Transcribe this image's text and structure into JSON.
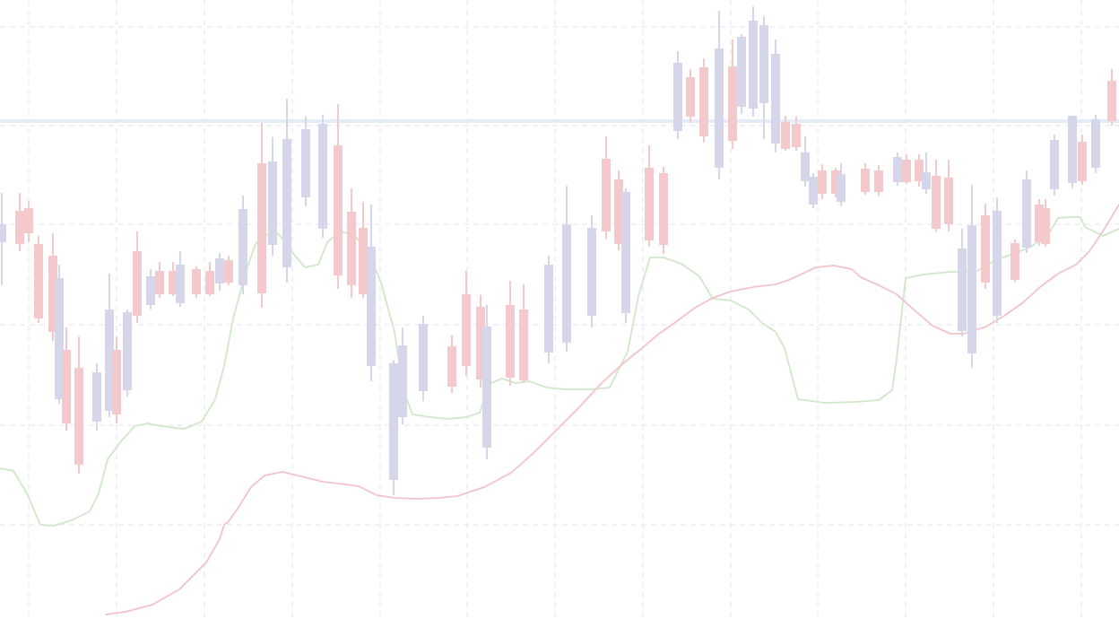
{
  "chart_data": {
    "type": "candlestick",
    "title": "",
    "xlabel": "",
    "ylabel": "",
    "grid": true,
    "legend": "none",
    "ylim": [
      0,
      690
    ],
    "colors": {
      "up": "#d6d6ea",
      "down": "#f3c9cc",
      "horizontal_line": "#e3ecf8",
      "green_line": "#cfe8c9",
      "red_line": "#f2c3c8",
      "grid": "#e6e6ea",
      "background": "#ffffff"
    },
    "horizontal_line": {
      "value": 555
    },
    "candles": [
      {
        "x": 2,
        "o": 440,
        "h": 475,
        "l": 372,
        "c": 420,
        "dir": "up"
      },
      {
        "x": 22,
        "o": 418,
        "h": 475,
        "l": 410,
        "c": 455,
        "dir": "down"
      },
      {
        "x": 32,
        "o": 458,
        "h": 465,
        "l": 420,
        "c": 430,
        "dir": "down"
      },
      {
        "x": 43,
        "o": 418,
        "h": 427,
        "l": 330,
        "c": 335,
        "dir": "down"
      },
      {
        "x": 59,
        "o": 405,
        "h": 430,
        "l": 310,
        "c": 320,
        "dir": "down"
      },
      {
        "x": 66,
        "o": 245,
        "h": 395,
        "l": 240,
        "c": 380,
        "dir": "up"
      },
      {
        "x": 74,
        "o": 300,
        "h": 325,
        "l": 210,
        "c": 218,
        "dir": "down"
      },
      {
        "x": 88,
        "o": 280,
        "h": 315,
        "l": 162,
        "c": 172,
        "dir": "down"
      },
      {
        "x": 108,
        "o": 220,
        "h": 285,
        "l": 210,
        "c": 275,
        "dir": "up"
      },
      {
        "x": 122,
        "o": 232,
        "h": 385,
        "l": 225,
        "c": 345,
        "dir": "up"
      },
      {
        "x": 130,
        "o": 300,
        "h": 315,
        "l": 218,
        "c": 228,
        "dir": "down"
      },
      {
        "x": 142,
        "o": 255,
        "h": 345,
        "l": 248,
        "c": 342,
        "dir": "up"
      },
      {
        "x": 153,
        "o": 410,
        "h": 432,
        "l": 330,
        "c": 338,
        "dir": "down"
      },
      {
        "x": 168,
        "o": 350,
        "h": 390,
        "l": 345,
        "c": 382,
        "dir": "up"
      },
      {
        "x": 178,
        "o": 388,
        "h": 398,
        "l": 358,
        "c": 362,
        "dir": "down"
      },
      {
        "x": 193,
        "o": 388,
        "h": 398,
        "l": 360,
        "c": 362,
        "dir": "down"
      },
      {
        "x": 201,
        "o": 352,
        "h": 410,
        "l": 348,
        "c": 395,
        "dir": "up"
      },
      {
        "x": 219,
        "o": 390,
        "h": 393,
        "l": 358,
        "c": 362,
        "dir": "down"
      },
      {
        "x": 234,
        "o": 388,
        "h": 398,
        "l": 360,
        "c": 362,
        "dir": "down"
      },
      {
        "x": 245,
        "o": 374,
        "h": 408,
        "l": 366,
        "c": 402,
        "dir": "up"
      },
      {
        "x": 255,
        "o": 400,
        "h": 405,
        "l": 372,
        "c": 375,
        "dir": "down"
      },
      {
        "x": 271,
        "o": 372,
        "h": 472,
        "l": 362,
        "c": 457,
        "dir": "up"
      },
      {
        "x": 292,
        "o": 508,
        "h": 553,
        "l": 347,
        "c": 363,
        "dir": "down"
      },
      {
        "x": 304,
        "o": 417,
        "h": 537,
        "l": 405,
        "c": 510,
        "dir": "up"
      },
      {
        "x": 320,
        "o": 392,
        "h": 580,
        "l": 375,
        "c": 535,
        "dir": "up"
      },
      {
        "x": 341,
        "o": 470,
        "h": 560,
        "l": 460,
        "c": 546,
        "dir": "up"
      },
      {
        "x": 360,
        "o": 435,
        "h": 562,
        "l": 425,
        "c": 552,
        "dir": "up"
      },
      {
        "x": 377,
        "o": 528,
        "h": 574,
        "l": 368,
        "c": 383,
        "dir": "down"
      },
      {
        "x": 392,
        "o": 454,
        "h": 480,
        "l": 358,
        "c": 372,
        "dir": "down"
      },
      {
        "x": 405,
        "o": 436,
        "h": 465,
        "l": 358,
        "c": 362,
        "dir": "down"
      },
      {
        "x": 414,
        "o": 282,
        "h": 462,
        "l": 265,
        "c": 415,
        "dir": "up"
      },
      {
        "x": 439,
        "o": 155,
        "h": 288,
        "l": 138,
        "c": 285,
        "dir": "up"
      },
      {
        "x": 449,
        "o": 225,
        "h": 325,
        "l": 217,
        "c": 305,
        "dir": "up"
      },
      {
        "x": 472,
        "o": 254,
        "h": 338,
        "l": 243,
        "c": 329,
        "dir": "up"
      },
      {
        "x": 504,
        "o": 304,
        "h": 316,
        "l": 252,
        "c": 259,
        "dir": "down"
      },
      {
        "x": 520,
        "o": 362,
        "h": 388,
        "l": 271,
        "c": 282,
        "dir": "down"
      },
      {
        "x": 536,
        "o": 348,
        "h": 361,
        "l": 258,
        "c": 267,
        "dir": "down"
      },
      {
        "x": 543,
        "o": 326,
        "h": 350,
        "l": 178,
        "c": 191,
        "dir": "up"
      },
      {
        "x": 569,
        "o": 350,
        "h": 377,
        "l": 260,
        "c": 269,
        "dir": "down"
      },
      {
        "x": 584,
        "o": 345,
        "h": 373,
        "l": 263,
        "c": 266,
        "dir": "down"
      },
      {
        "x": 612,
        "o": 297,
        "h": 405,
        "l": 285,
        "c": 395,
        "dir": "up"
      },
      {
        "x": 632,
        "o": 308,
        "h": 483,
        "l": 298,
        "c": 440,
        "dir": "up"
      },
      {
        "x": 660,
        "o": 338,
        "h": 450,
        "l": 325,
        "c": 436,
        "dir": "up"
      },
      {
        "x": 676,
        "o": 513,
        "h": 538,
        "l": 424,
        "c": 432,
        "dir": "down"
      },
      {
        "x": 690,
        "o": 490,
        "h": 500,
        "l": 411,
        "c": 418,
        "dir": "down"
      },
      {
        "x": 698,
        "o": 341,
        "h": 480,
        "l": 330,
        "c": 476,
        "dir": "up"
      },
      {
        "x": 724,
        "o": 503,
        "h": 528,
        "l": 415,
        "c": 422,
        "dir": "down"
      },
      {
        "x": 740,
        "o": 497,
        "h": 504,
        "l": 407,
        "c": 417,
        "dir": "down"
      },
      {
        "x": 756,
        "o": 544,
        "h": 633,
        "l": 535,
        "c": 620,
        "dir": "up"
      },
      {
        "x": 770,
        "o": 604,
        "h": 613,
        "l": 553,
        "c": 560,
        "dir": "down"
      },
      {
        "x": 785,
        "o": 615,
        "h": 625,
        "l": 531,
        "c": 538,
        "dir": "down"
      },
      {
        "x": 802,
        "o": 503,
        "h": 678,
        "l": 490,
        "c": 636,
        "dir": "up"
      },
      {
        "x": 817,
        "o": 616,
        "h": 646,
        "l": 524,
        "c": 533,
        "dir": "down"
      },
      {
        "x": 827,
        "o": 571,
        "h": 652,
        "l": 563,
        "c": 649,
        "dir": "up"
      },
      {
        "x": 840,
        "o": 569,
        "h": 683,
        "l": 560,
        "c": 667,
        "dir": "up"
      },
      {
        "x": 852,
        "o": 575,
        "h": 672,
        "l": 535,
        "c": 662,
        "dir": "up"
      },
      {
        "x": 865,
        "o": 530,
        "h": 646,
        "l": 520,
        "c": 630,
        "dir": "up"
      },
      {
        "x": 876,
        "o": 554,
        "h": 561,
        "l": 522,
        "c": 524,
        "dir": "down"
      },
      {
        "x": 888,
        "o": 552,
        "h": 560,
        "l": 522,
        "c": 526,
        "dir": "down"
      },
      {
        "x": 898,
        "o": 488,
        "h": 538,
        "l": 482,
        "c": 520,
        "dir": "up"
      },
      {
        "x": 907,
        "o": 462,
        "h": 497,
        "l": 458,
        "c": 493,
        "dir": "up"
      },
      {
        "x": 917,
        "o": 500,
        "h": 507,
        "l": 468,
        "c": 474,
        "dir": "down"
      },
      {
        "x": 932,
        "o": 500,
        "h": 503,
        "l": 470,
        "c": 474,
        "dir": "down"
      },
      {
        "x": 938,
        "o": 465,
        "h": 508,
        "l": 460,
        "c": 496,
        "dir": "up"
      },
      {
        "x": 965,
        "o": 502,
        "h": 508,
        "l": 473,
        "c": 476,
        "dir": "down"
      },
      {
        "x": 980,
        "o": 500,
        "h": 506,
        "l": 472,
        "c": 476,
        "dir": "down"
      },
      {
        "x": 1001,
        "o": 487,
        "h": 520,
        "l": 483,
        "c": 515,
        "dir": "up"
      },
      {
        "x": 1011,
        "o": 512,
        "h": 518,
        "l": 485,
        "c": 487,
        "dir": "down"
      },
      {
        "x": 1025,
        "o": 512,
        "h": 518,
        "l": 482,
        "c": 488,
        "dir": "down"
      },
      {
        "x": 1033,
        "o": 479,
        "h": 520,
        "l": 474,
        "c": 498,
        "dir": "up"
      },
      {
        "x": 1044,
        "o": 494,
        "h": 512,
        "l": 432,
        "c": 435,
        "dir": "down"
      },
      {
        "x": 1058,
        "o": 492,
        "h": 512,
        "l": 432,
        "c": 440,
        "dir": "down"
      },
      {
        "x": 1073,
        "o": 321,
        "h": 435,
        "l": 315,
        "c": 413,
        "dir": "up"
      },
      {
        "x": 1084,
        "o": 296,
        "h": 484,
        "l": 280,
        "c": 439,
        "dir": "up"
      },
      {
        "x": 1099,
        "o": 450,
        "h": 463,
        "l": 368,
        "c": 375,
        "dir": "down"
      },
      {
        "x": 1112,
        "o": 338,
        "h": 470,
        "l": 330,
        "c": 455,
        "dir": "up"
      },
      {
        "x": 1132,
        "o": 419,
        "h": 423,
        "l": 376,
        "c": 378,
        "dir": "down"
      },
      {
        "x": 1145,
        "o": 414,
        "h": 500,
        "l": 408,
        "c": 490,
        "dir": "up"
      },
      {
        "x": 1159,
        "o": 462,
        "h": 468,
        "l": 416,
        "c": 420,
        "dir": "down"
      },
      {
        "x": 1166,
        "o": 458,
        "h": 468,
        "l": 415,
        "c": 418,
        "dir": "down"
      },
      {
        "x": 1176,
        "o": 479,
        "h": 540,
        "l": 472,
        "c": 534,
        "dir": "up"
      },
      {
        "x": 1196,
        "o": 486,
        "h": 558,
        "l": 480,
        "c": 561,
        "dir": "up"
      },
      {
        "x": 1207,
        "o": 532,
        "h": 540,
        "l": 484,
        "c": 488,
        "dir": "down"
      },
      {
        "x": 1222,
        "o": 503,
        "h": 562,
        "l": 497,
        "c": 557,
        "dir": "up"
      },
      {
        "x": 1240,
        "o": 600,
        "h": 613,
        "l": 550,
        "c": 555,
        "dir": "down"
      }
    ],
    "series": [
      {
        "type": "line",
        "color": "#cfe8c9",
        "points": [
          [
            0,
            168
          ],
          [
            15,
            165
          ],
          [
            30,
            140
          ],
          [
            45,
            105
          ],
          [
            60,
            104
          ],
          [
            80,
            110
          ],
          [
            100,
            120
          ],
          [
            110,
            140
          ],
          [
            120,
            178
          ],
          [
            135,
            198
          ],
          [
            150,
            215
          ],
          [
            165,
            218
          ],
          [
            180,
            215
          ],
          [
            205,
            212
          ],
          [
            225,
            220
          ],
          [
            240,
            245
          ],
          [
            250,
            282
          ],
          [
            260,
            335
          ],
          [
            275,
            390
          ],
          [
            285,
            418
          ],
          [
            295,
            428
          ],
          [
            310,
            430
          ],
          [
            325,
            410
          ],
          [
            340,
            392
          ],
          [
            355,
            395
          ],
          [
            365,
            420
          ],
          [
            380,
            432
          ],
          [
            395,
            428
          ],
          [
            410,
            410
          ],
          [
            425,
            375
          ],
          [
            440,
            320
          ],
          [
            450,
            255
          ],
          [
            460,
            228
          ],
          [
            480,
            225
          ],
          [
            500,
            223
          ],
          [
            520,
            225
          ],
          [
            535,
            230
          ],
          [
            545,
            262
          ],
          [
            560,
            268
          ],
          [
            575,
            263
          ],
          [
            590,
            265
          ],
          [
            610,
            258
          ],
          [
            630,
            256
          ],
          [
            660,
            256
          ],
          [
            680,
            258
          ],
          [
            700,
            298
          ],
          [
            712,
            360
          ],
          [
            725,
            403
          ],
          [
            740,
            403
          ],
          [
            760,
            396
          ],
          [
            780,
            382
          ],
          [
            795,
            357
          ],
          [
            815,
            355
          ],
          [
            835,
            345
          ],
          [
            850,
            330
          ],
          [
            865,
            320
          ],
          [
            875,
            302
          ],
          [
            890,
            245
          ],
          [
            920,
            241
          ],
          [
            955,
            242
          ],
          [
            980,
            244
          ],
          [
            995,
            255
          ],
          [
            1000,
            290
          ],
          [
            1010,
            380
          ],
          [
            1030,
            384
          ],
          [
            1060,
            387
          ],
          [
            1090,
            388
          ],
          [
            1110,
            400
          ],
          [
            1130,
            407
          ],
          [
            1150,
            415
          ],
          [
            1170,
            430
          ],
          [
            1180,
            447
          ],
          [
            1195,
            448
          ],
          [
            1205,
            448
          ],
          [
            1210,
            437
          ],
          [
            1230,
            427
          ],
          [
            1248,
            435
          ]
        ]
      },
      {
        "type": "line",
        "color": "#f2c3c8",
        "points": [
          [
            118,
            5
          ],
          [
            140,
            8
          ],
          [
            170,
            16
          ],
          [
            200,
            33
          ],
          [
            230,
            63
          ],
          [
            245,
            89
          ],
          [
            250,
            105
          ],
          [
            255,
            109
          ],
          [
            265,
            123
          ],
          [
            280,
            147
          ],
          [
            295,
            160
          ],
          [
            315,
            164
          ],
          [
            340,
            158
          ],
          [
            360,
            153
          ],
          [
            385,
            150
          ],
          [
            400,
            148
          ],
          [
            420,
            138
          ],
          [
            440,
            135
          ],
          [
            465,
            134
          ],
          [
            490,
            135
          ],
          [
            510,
            137
          ],
          [
            540,
            147
          ],
          [
            570,
            163
          ],
          [
            595,
            185
          ],
          [
            620,
            210
          ],
          [
            645,
            235
          ],
          [
            670,
            262
          ],
          [
            695,
            285
          ],
          [
            715,
            301
          ],
          [
            735,
            318
          ],
          [
            755,
            332
          ],
          [
            775,
            347
          ],
          [
            795,
            358
          ],
          [
            815,
            365
          ],
          [
            840,
            370
          ],
          [
            865,
            373
          ],
          [
            880,
            378
          ],
          [
            895,
            385
          ],
          [
            910,
            392
          ],
          [
            930,
            394
          ],
          [
            950,
            390
          ],
          [
            960,
            381
          ],
          [
            980,
            372
          ],
          [
            1000,
            362
          ],
          [
            1020,
            344
          ],
          [
            1040,
            327
          ],
          [
            1060,
            318
          ],
          [
            1075,
            318
          ],
          [
            1100,
            326
          ],
          [
            1120,
            338
          ],
          [
            1140,
            352
          ],
          [
            1160,
            370
          ],
          [
            1180,
            385
          ],
          [
            1200,
            395
          ],
          [
            1215,
            410
          ],
          [
            1230,
            432
          ],
          [
            1248,
            462
          ]
        ]
      }
    ]
  }
}
